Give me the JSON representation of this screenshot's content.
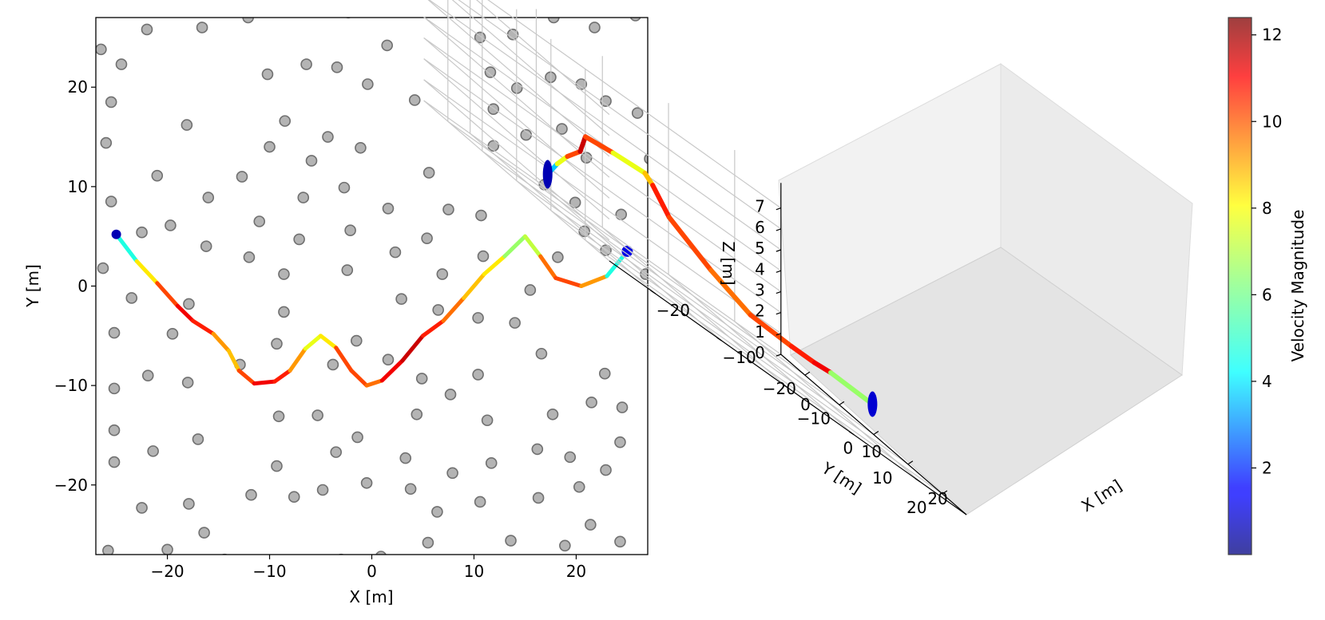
{
  "chart_data": [
    {
      "type": "scatter+line",
      "title": "",
      "xlabel": "X [m]",
      "ylabel": "Y [m]",
      "xlim": [
        -27,
        27
      ],
      "ylim": [
        -27,
        27
      ],
      "xticks": [
        -20,
        -10,
        0,
        10,
        20
      ],
      "yticks": [
        -20,
        -10,
        0,
        10,
        20
      ],
      "xtick_labels": [
        "−20",
        "−10",
        "0",
        "10",
        "20"
      ],
      "ytick_labels": [
        "−20",
        "−10",
        "0",
        "10",
        "20"
      ],
      "obstacles": [
        [
          -26.5,
          23.8
        ],
        [
          -22,
          25.8
        ],
        [
          -16.6,
          26
        ],
        [
          -12.1,
          27
        ],
        [
          -2.3,
          27.5
        ],
        [
          1.5,
          24.2
        ],
        [
          10.6,
          25
        ],
        [
          13.8,
          25.3
        ],
        [
          17.8,
          27
        ],
        [
          21.8,
          26
        ],
        [
          25.8,
          27.2
        ],
        [
          -24.5,
          22.3
        ],
        [
          -10.2,
          21.3
        ],
        [
          -6.4,
          22.3
        ],
        [
          -3.4,
          22
        ],
        [
          -0.4,
          20.3
        ],
        [
          4.2,
          18.7
        ],
        [
          11.6,
          21.5
        ],
        [
          14.2,
          19.9
        ],
        [
          17.5,
          21
        ],
        [
          20.5,
          20.3
        ],
        [
          22.9,
          18.6
        ],
        [
          26,
          17.4
        ],
        [
          -25.5,
          18.5
        ],
        [
          -18.1,
          16.2
        ],
        [
          -8.5,
          16.6
        ],
        [
          -4.3,
          15
        ],
        [
          -5.9,
          12.6
        ],
        [
          -10,
          14
        ],
        [
          -1.1,
          13.9
        ],
        [
          11.9,
          17.8
        ],
        [
          15.1,
          15.2
        ],
        [
          18.6,
          15.8
        ],
        [
          21,
          12.9
        ],
        [
          11.9,
          14.1
        ],
        [
          27.2,
          12.8
        ],
        [
          -26,
          14.4
        ],
        [
          -21,
          11.1
        ],
        [
          -12.7,
          11
        ],
        [
          5.6,
          11.4
        ],
        [
          -2.7,
          9.9
        ],
        [
          -6.7,
          8.9
        ],
        [
          -16,
          8.9
        ],
        [
          -25.5,
          8.5
        ],
        [
          1.6,
          7.8
        ],
        [
          7.5,
          7.7
        ],
        [
          10.7,
          7.1
        ],
        [
          16.9,
          10.2
        ],
        [
          19.9,
          8.4
        ],
        [
          24.4,
          7.2
        ],
        [
          -22.5,
          5.4
        ],
        [
          -19.7,
          6.1
        ],
        [
          -11,
          6.5
        ],
        [
          -7.1,
          4.7
        ],
        [
          -2.1,
          5.6
        ],
        [
          5.4,
          4.8
        ],
        [
          2.3,
          3.4
        ],
        [
          -16.2,
          4
        ],
        [
          -12,
          2.9
        ],
        [
          -8.6,
          1.2
        ],
        [
          -2.4,
          1.6
        ],
        [
          6.9,
          1.2
        ],
        [
          10.9,
          3
        ],
        [
          18.2,
          2.9
        ],
        [
          20.8,
          5.5
        ],
        [
          22.9,
          3.6
        ],
        [
          26.8,
          1.2
        ],
        [
          -26.3,
          1.8
        ],
        [
          -23.5,
          -1.2
        ],
        [
          -17.9,
          -1.8
        ],
        [
          -8.6,
          -2.6
        ],
        [
          2.9,
          -1.3
        ],
        [
          6.5,
          -2.4
        ],
        [
          10.4,
          -3.2
        ],
        [
          14,
          -3.7
        ],
        [
          15.5,
          -0.4
        ],
        [
          -25.2,
          -4.7
        ],
        [
          -19.5,
          -4.8
        ],
        [
          -9.3,
          -5.8
        ],
        [
          -1.5,
          -5.5
        ],
        [
          -12.9,
          -7.9
        ],
        [
          -21.9,
          -9
        ],
        [
          -18,
          -9.7
        ],
        [
          -3.8,
          -7.9
        ],
        [
          1.6,
          -7.4
        ],
        [
          4.9,
          -9.3
        ],
        [
          10.4,
          -8.9
        ],
        [
          16.6,
          -6.8
        ],
        [
          22.8,
          -8.8
        ],
        [
          -25.2,
          -10.3
        ],
        [
          7.7,
          -10.9
        ],
        [
          -9.1,
          -13.1
        ],
        [
          -5.3,
          -13
        ],
        [
          -1.4,
          -15.2
        ],
        [
          4.4,
          -12.9
        ],
        [
          11.3,
          -13.5
        ],
        [
          17.7,
          -12.9
        ],
        [
          21.5,
          -11.7
        ],
        [
          24.5,
          -12.2
        ],
        [
          -25.2,
          -14.5
        ],
        [
          -17,
          -15.4
        ],
        [
          -21.4,
          -16.6
        ],
        [
          -9.3,
          -18.1
        ],
        [
          -3.5,
          -16.7
        ],
        [
          3.3,
          -17.3
        ],
        [
          7.9,
          -18.8
        ],
        [
          11.7,
          -17.8
        ],
        [
          16.2,
          -16.4
        ],
        [
          19.4,
          -17.2
        ],
        [
          22.9,
          -18.5
        ],
        [
          24.3,
          -15.7
        ],
        [
          -25.2,
          -17.7
        ],
        [
          -22.5,
          -22.3
        ],
        [
          -17.9,
          -21.9
        ],
        [
          -11.8,
          -21
        ],
        [
          -7.6,
          -21.2
        ],
        [
          -4.8,
          -20.5
        ],
        [
          -0.5,
          -19.8
        ],
        [
          3.8,
          -20.4
        ],
        [
          10.6,
          -21.7
        ],
        [
          16.3,
          -21.3
        ],
        [
          20.3,
          -20.2
        ],
        [
          6.4,
          -22.7
        ],
        [
          -16.4,
          -24.8
        ],
        [
          -25.8,
          -26.6
        ],
        [
          -20,
          -26.5
        ],
        [
          -14.4,
          -27.5
        ],
        [
          -3,
          -27.5
        ],
        [
          0.9,
          -27.2
        ],
        [
          5.5,
          -25.8
        ],
        [
          13.6,
          -25.6
        ],
        [
          18.9,
          -26.1
        ],
        [
          21.4,
          -24
        ],
        [
          24.3,
          -25.7
        ]
      ],
      "trajectory": [
        [
          -25,
          5.2
        ],
        [
          -23,
          2.5
        ],
        [
          -21,
          0.3
        ],
        [
          -19,
          -2
        ],
        [
          -17.5,
          -3.5
        ],
        [
          -15.5,
          -4.8
        ],
        [
          -14,
          -6.5
        ],
        [
          -13,
          -8.5
        ],
        [
          -11.5,
          -9.8
        ],
        [
          -9.5,
          -9.6
        ],
        [
          -8,
          -8.5
        ],
        [
          -6.5,
          -6.3
        ],
        [
          -5,
          -5
        ],
        [
          -3.5,
          -6.2
        ],
        [
          -2,
          -8.5
        ],
        [
          -0.5,
          -10
        ],
        [
          1,
          -9.5
        ],
        [
          3,
          -7.5
        ],
        [
          5,
          -5
        ],
        [
          7,
          -3.5
        ],
        [
          9,
          -1.2
        ],
        [
          11,
          1.2
        ],
        [
          13,
          3
        ],
        [
          15,
          5
        ],
        [
          16.5,
          3
        ],
        [
          18,
          0.8
        ],
        [
          20.5,
          0
        ],
        [
          23,
          1
        ],
        [
          25,
          3.5
        ]
      ],
      "trajectory_speeds": [
        3,
        7,
        9,
        11,
        11,
        10,
        8,
        9,
        11,
        11,
        10,
        8,
        7,
        9,
        11,
        9,
        10,
        12,
        11,
        10,
        9,
        8,
        8,
        5,
        9,
        10,
        10,
        8,
        2
      ]
    },
    {
      "type": "line3d",
      "xlabel": "X [m]",
      "ylabel": "Y [m]",
      "zlabel": "Z [m]",
      "xlim": [
        -27,
        27
      ],
      "ylim": [
        -27,
        27
      ],
      "zlim": [
        0,
        7
      ],
      "xticks": [
        -20,
        -10,
        0,
        10,
        20
      ],
      "yticks": [
        -20,
        -10,
        0,
        10,
        20
      ],
      "zticks": [
        0,
        1,
        2,
        3,
        4,
        5,
        6,
        7
      ],
      "xtick_labels": [
        "−20",
        "−10",
        "0",
        "10",
        "20"
      ],
      "ytick_labels": [
        "−20",
        "−10",
        "0",
        "10",
        "20"
      ],
      "ztick_labels": [
        "0",
        "1",
        "2",
        "3",
        "4",
        "5",
        "6",
        "7"
      ],
      "trajectory": [
        [
          -25,
          5.2,
          1.5
        ],
        [
          -21,
          0.3,
          2.2
        ],
        [
          -17.5,
          -3.5,
          2.8
        ],
        [
          -14,
          -6.5,
          3.4
        ],
        [
          -11.5,
          -9.8,
          4.2
        ],
        [
          -8,
          -8.5,
          4.4
        ],
        [
          -5,
          -5,
          4.6
        ],
        [
          -2,
          -8.5,
          4.2
        ],
        [
          1,
          -9.5,
          3.2
        ],
        [
          5,
          -5,
          2.2
        ],
        [
          9,
          -1.2,
          1.5
        ],
        [
          13,
          3,
          1.5
        ],
        [
          16.5,
          3,
          1.5
        ],
        [
          20.5,
          0,
          1.5
        ],
        [
          25,
          3.5,
          1.5
        ]
      ],
      "trajectory_speeds": [
        2,
        6,
        9,
        11,
        12,
        8,
        7,
        10,
        11,
        9,
        10,
        10,
        11,
        11,
        2
      ]
    }
  ],
  "colorbar": {
    "label": "Velocity Magnitude",
    "min": 0,
    "max": 12.4,
    "ticks": [
      2,
      4,
      6,
      8,
      10,
      12
    ],
    "tick_labels": [
      "2",
      "4",
      "6",
      "8",
      "10",
      "12"
    ]
  }
}
